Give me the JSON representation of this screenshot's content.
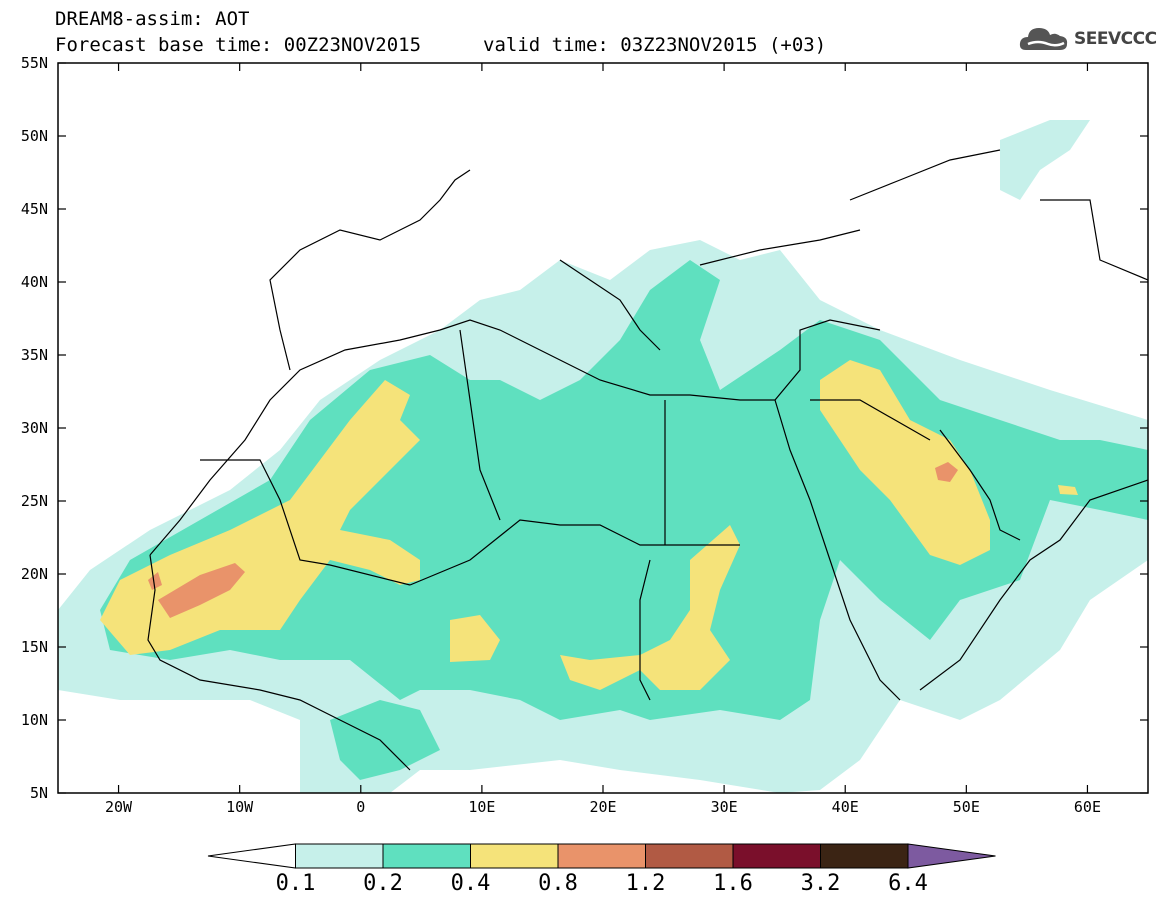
{
  "header": {
    "line1": "DREAM8-assim: AOT",
    "base_time": "Forecast base time: 00Z23NOV2015",
    "valid_time": "valid time: 03Z23NOV2015 (+03)"
  },
  "logo": {
    "text": "SEEVCCC",
    "icon": "cloud-icon"
  },
  "map": {
    "lon_range": [
      -25,
      65
    ],
    "lat_range": [
      5,
      55
    ],
    "lat_labels": [
      "55N",
      "50N",
      "45N",
      "40N",
      "35N",
      "30N",
      "25N",
      "20N",
      "15N",
      "10N",
      "5N"
    ],
    "lon_labels": [
      "20W",
      "10W",
      "0",
      "10E",
      "20E",
      "30E",
      "40E",
      "50E",
      "60E"
    ]
  },
  "colorbar": {
    "labels": [
      "0.1",
      "0.2",
      "0.4",
      "0.8",
      "1.2",
      "1.6",
      "3.2",
      "6.4"
    ],
    "colors": [
      "#ffffff",
      "#c6f0ea",
      "#5fe0bf",
      "#f5e37a",
      "#e9936a",
      "#b15a44",
      "#7a0f2b",
      "#3b2414",
      "#7d5aa0"
    ]
  }
}
